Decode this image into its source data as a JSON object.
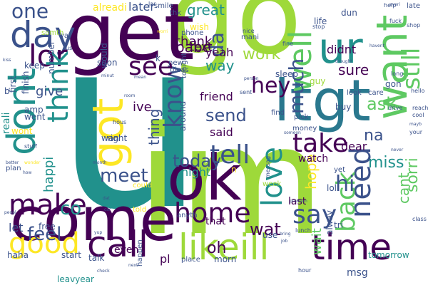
{
  "palette": {
    "purple": "#440154",
    "indigo": "#3b528b",
    "teal": "#21918c",
    "green": "#5ec962",
    "lime": "#9ed93a",
    "yellow": "#fde725",
    "white": "#ffffff"
  },
  "words": [
    {
      "text": "u",
      "color": "#21918c",
      "orientation": "horizontal"
    },
    {
      "text": "im",
      "color": "#9ed93a",
      "orientation": "horizontal"
    },
    {
      "text": "go",
      "color": "#9ed93a",
      "orientation": "horizontal"
    },
    {
      "text": "get",
      "color": "#440154",
      "orientation": "horizontal"
    },
    {
      "text": "come",
      "color": "#440154",
      "orientation": "horizontal"
    },
    {
      "text": "ok",
      "color": "#440154",
      "orientation": "horizontal"
    },
    {
      "text": "ur",
      "color": "#21918c",
      "orientation": "horizontal"
    },
    {
      "text": "ltgt",
      "color": "#2a788e",
      "orientation": "horizontal"
    },
    {
      "text": "want",
      "color": "#5ec962",
      "orientation": "vertical"
    },
    {
      "text": "got",
      "color": "#fde725",
      "orientation": "vertical"
    },
    {
      "text": "know",
      "color": "#3b528b",
      "orientation": "vertical"
    },
    {
      "text": "call",
      "color": "#440154",
      "orientation": "horizontal"
    },
    {
      "text": "likeill",
      "color": "#9ed93a",
      "orientation": "horizontal"
    },
    {
      "text": "time",
      "color": "#440154",
      "orientation": "horizontal"
    },
    {
      "text": "day",
      "color": "#3b528b",
      "orientation": "horizontal"
    },
    {
      "text": "one",
      "color": "#3b528b",
      "orientation": "horizontal"
    },
    {
      "text": "dont",
      "color": "#21918c",
      "orientation": "vertical"
    },
    {
      "text": "lor",
      "color": "#440154",
      "orientation": "horizontal"
    },
    {
      "text": "think",
      "color": "#21918c",
      "orientation": "vertical"
    },
    {
      "text": "love",
      "color": "#21918c",
      "orientation": "vertical"
    },
    {
      "text": "tell",
      "color": "#3b528b",
      "orientation": "horizontal"
    },
    {
      "text": "take",
      "color": "#440154",
      "orientation": "horizontal"
    },
    {
      "text": "well",
      "color": "#5ec962",
      "orientation": "vertical"
    },
    {
      "text": "still",
      "color": "#5ec962",
      "orientation": "vertical"
    },
    {
      "text": "make",
      "color": "#440154",
      "orientation": "horizontal"
    },
    {
      "text": "good",
      "color": "#fde725",
      "orientation": "horizontal"
    },
    {
      "text": "home",
      "color": "#440154",
      "orientation": "horizontal"
    },
    {
      "text": "need",
      "color": "#3b528b",
      "orientation": "vertical"
    },
    {
      "text": "back",
      "color": "#5ec962",
      "orientation": "vertical"
    },
    {
      "text": "say",
      "color": "#3b528b",
      "orientation": "horizontal"
    },
    {
      "text": "see",
      "color": "#440154",
      "orientation": "horizontal"
    },
    {
      "text": "work",
      "color": "#9ed93a",
      "orientation": "horizontal"
    },
    {
      "text": "meet",
      "color": "#3b528b",
      "orientation": "horizontal"
    },
    {
      "text": "hey",
      "color": "#440154",
      "orientation": "horizontal"
    },
    {
      "text": "send",
      "color": "#3b528b",
      "orientation": "horizontal"
    },
    {
      "text": "today",
      "color": "#3b528b",
      "orientation": "horizontal"
    },
    {
      "text": "hi",
      "color": "#3b528b",
      "orientation": "horizontal"
    },
    {
      "text": "much",
      "color": "#3b528b",
      "orientation": "vertical"
    },
    {
      "text": "da",
      "color": "#3b528b",
      "orientation": "vertical"
    },
    {
      "text": "sure",
      "color": "#440154",
      "orientation": "horizontal"
    },
    {
      "text": "ask",
      "color": "#5ec962",
      "orientation": "horizontal"
    },
    {
      "text": "miss",
      "color": "#21918c",
      "orientation": "horizontal"
    },
    {
      "text": "co",
      "color": "#21918c",
      "orientation": "horizontal"
    },
    {
      "text": "feel",
      "color": "#3b528b",
      "orientation": "horizontal"
    },
    {
      "text": "wat",
      "color": "#440154",
      "orientation": "horizontal"
    },
    {
      "text": "oh",
      "color": "#440154",
      "orientation": "horizontal"
    },
    {
      "text": "way",
      "color": "#21918c",
      "orientation": "horizontal"
    },
    {
      "text": "babe",
      "color": "#440154",
      "orientation": "horizontal"
    },
    {
      "text": "thank",
      "color": "#440154",
      "orientation": "horizontal"
    },
    {
      "text": "great",
      "color": "#21918c",
      "orientation": "horizontal"
    },
    {
      "text": "text",
      "color": "#440154",
      "orientation": "horizontal"
    },
    {
      "text": "yeah",
      "color": "#440154",
      "orientation": "horizontal"
    },
    {
      "text": "later",
      "color": "#3b528b",
      "orientation": "horizontal"
    },
    {
      "text": "alreadi",
      "color": "#fde725",
      "orientation": "horizontal"
    },
    {
      "text": "happi",
      "color": "#21918c",
      "orientation": "vertical"
    },
    {
      "text": "give",
      "color": "#3b528b",
      "orientation": "horizontal"
    },
    {
      "text": "thing",
      "color": "#3b528b",
      "orientation": "vertical"
    },
    {
      "text": "ive",
      "color": "#440154",
      "orientation": "horizontal"
    },
    {
      "text": "night",
      "color": "#21918c",
      "orientation": "horizontal"
    },
    {
      "text": "friend",
      "color": "#440154",
      "orientation": "horizontal"
    },
    {
      "text": "said",
      "color": "#440154",
      "orientation": "horizontal"
    },
    {
      "text": "hope",
      "color": "#fde725",
      "orientation": "vertical"
    },
    {
      "text": "sorri",
      "color": "#5ec962",
      "orientation": "vertical"
    },
    {
      "text": "cant",
      "color": "#5ec962",
      "orientation": "vertical"
    },
    {
      "text": "na",
      "color": "#3b528b",
      "orientation": "horizontal"
    },
    {
      "text": "didnt",
      "color": "#440154",
      "orientation": "horizontal"
    },
    {
      "text": "dear",
      "color": "#440154",
      "orientation": "horizontal"
    },
    {
      "text": "wait",
      "color": "#5ec962",
      "orientation": "vertical"
    },
    {
      "text": "let",
      "color": "#3b528b",
      "orientation": "horizontal"
    },
    {
      "text": "pl",
      "color": "#440154",
      "orientation": "horizontal"
    },
    {
      "text": "even",
      "color": "#440154",
      "orientation": "horizontal"
    },
    {
      "text": "that",
      "color": "#440154",
      "orientation": "horizontal"
    },
    {
      "text": "last",
      "color": "#440154",
      "orientation": "horizontal"
    },
    {
      "text": "lol",
      "color": "#3b528b",
      "orientation": "horizontal"
    },
    {
      "text": "msg",
      "color": "#3b528b",
      "orientation": "horizontal"
    },
    {
      "text": "free",
      "color": "#3b528b",
      "orientation": "horizontal"
    },
    {
      "text": "haha",
      "color": "#3b528b",
      "orientation": "horizontal"
    },
    {
      "text": "leavyear",
      "color": "#21918c",
      "orientation": "horizontal"
    },
    {
      "text": "start",
      "color": "#3b528b",
      "orientation": "horizontal"
    },
    {
      "text": "talk",
      "color": "#3b528b",
      "orientation": "horizontal"
    },
    {
      "text": "watch",
      "color": "#440154",
      "orientation": "horizontal"
    },
    {
      "text": "tomorrow",
      "color": "#21918c",
      "orientation": "horizontal"
    },
    {
      "text": "use",
      "color": "#3b528b",
      "orientation": "horizontal"
    },
    {
      "text": "morn",
      "color": "#3b528b",
      "orientation": "horizontal"
    },
    {
      "text": "amp",
      "color": "#3b528b",
      "orientation": "horizontal"
    },
    {
      "text": "went",
      "color": "#3b528b",
      "orientation": "horizontal"
    },
    {
      "text": "reali",
      "color": "#21918c",
      "orientation": "vertical"
    },
    {
      "text": "wont",
      "color": "#fde725",
      "orientation": "horizontal"
    },
    {
      "text": "finish",
      "color": "#3b528b",
      "orientation": "vertical"
    },
    {
      "text": "first",
      "color": "#3b528b",
      "orientation": "vertical"
    },
    {
      "text": "keep",
      "color": "#3b528b",
      "orientation": "horizontal"
    },
    {
      "text": "smile",
      "color": "#3b528b",
      "orientation": "horizontal"
    },
    {
      "text": "wish",
      "color": "#fde725",
      "orientation": "horizontal"
    },
    {
      "text": "soon",
      "color": "#3b528b",
      "orientation": "horizontal"
    },
    {
      "text": "phone",
      "color": "#3b528b",
      "orientation": "horizontal"
    },
    {
      "text": "mani",
      "color": "#3b528b",
      "orientation": "horizontal"
    },
    {
      "text": "life",
      "color": "#3b528b",
      "orientation": "horizontal"
    },
    {
      "text": "dun",
      "color": "#3b528b",
      "orientation": "horizontal"
    },
    {
      "text": "sleep",
      "color": "#3b528b",
      "orientation": "horizontal"
    },
    {
      "text": "guy",
      "color": "#9ed93a",
      "orientation": "horizontal"
    },
    {
      "text": "gon",
      "color": "#3b528b",
      "orientation": "horizontal"
    },
    {
      "text": "buy",
      "color": "#3b528b",
      "orientation": "horizontal"
    },
    {
      "text": "look",
      "color": "#3b528b",
      "orientation": "horizontal"
    },
    {
      "text": "care",
      "color": "#3b528b",
      "orientation": "horizontal"
    },
    {
      "text": "find",
      "color": "#3b528b",
      "orientation": "horizontal"
    },
    {
      "text": "money",
      "color": "#3b528b",
      "orientation": "horizontal"
    },
    {
      "text": "yet",
      "color": "#3b528b",
      "orientation": "horizontal"
    },
    {
      "text": "week",
      "color": "#9ed93a",
      "orientation": "horizontal"
    },
    {
      "text": "told",
      "color": "#fde725",
      "orientation": "horizontal"
    },
    {
      "text": "place",
      "color": "#3b528b",
      "orientation": "horizontal"
    },
    {
      "text": "alway",
      "color": "#3b528b",
      "orientation": "vertical"
    },
    {
      "text": "tri",
      "color": "#3b528b",
      "orientation": "horizontal"
    },
    {
      "text": "could",
      "color": "#fde725",
      "orientation": "horizontal"
    },
    {
      "text": "anyth",
      "color": "#3b528b",
      "orientation": "horizontal"
    },
    {
      "text": "new",
      "color": "#3b528b",
      "orientation": "horizontal"
    },
    {
      "text": "pleas",
      "color": "#3b528b",
      "orientation": "horizontal"
    },
    {
      "text": "thk",
      "color": "#3b528b",
      "orientation": "horizontal"
    },
    {
      "text": "wan",
      "color": "#3b528b",
      "orientation": "horizontal"
    },
    {
      "text": "right",
      "color": "#3b528b",
      "orientation": "horizontal"
    },
    {
      "text": "around",
      "color": "#3b528b",
      "orientation": "vertical"
    },
    {
      "text": "tonight",
      "color": "#3b528b",
      "orientation": "vertical"
    },
    {
      "text": "n",
      "color": "#fde725",
      "orientation": "horizontal"
    },
    {
      "text": "k",
      "color": "#3b528b",
      "orientation": "horizontal"
    },
    {
      "text": "would",
      "color": "#3b528b",
      "orientation": "vertical"
    },
    {
      "text": "number",
      "color": "#3b528b",
      "orientation": "vertical"
    },
    {
      "text": "happen",
      "color": "#3b528b",
      "orientation": "vertical"
    },
    {
      "text": "somth",
      "color": "#9ed93a",
      "orientation": "horizontal"
    },
    {
      "text": "ya",
      "color": "#3b528b",
      "orientation": "horizontal"
    },
    {
      "text": "b",
      "color": "#3b528b",
      "orientation": "horizontal"
    },
    {
      "text": "plan",
      "color": "#3b528b",
      "orientation": "horizontal"
    },
    {
      "text": "lunch",
      "color": "#3b528b",
      "orientation": "horizontal"
    },
    {
      "text": "hour",
      "color": "#3b528b",
      "orientation": "horizontal"
    },
    {
      "text": "late",
      "color": "#3b528b",
      "orientation": "horizontal"
    },
    {
      "text": "help",
      "color": "#3b528b",
      "orientation": "horizontal"
    },
    {
      "text": "nice",
      "color": "#3b528b",
      "orientation": "horizontal"
    },
    {
      "text": "fine",
      "color": "#3b528b",
      "orientation": "horizontal"
    },
    {
      "text": "stop",
      "color": "#3b528b",
      "orientation": "horizontal"
    },
    {
      "text": "long",
      "color": "#3b528b",
      "orientation": "horizontal"
    },
    {
      "text": "hello",
      "color": "#3b528b",
      "orientation": "horizontal"
    },
    {
      "text": "cool",
      "color": "#3b528b",
      "orientation": "horizontal"
    },
    {
      "text": "drive",
      "color": "#3b528b",
      "orientation": "horizontal"
    },
    {
      "text": "reach",
      "color": "#3b528b",
      "orientation": "horizontal"
    },
    {
      "text": "your",
      "color": "#3b528b",
      "orientation": "horizontal"
    },
    {
      "text": "mayb",
      "color": "#3b528b",
      "orientation": "horizontal"
    },
    {
      "text": "class",
      "color": "#3b528b",
      "orientation": "horizontal"
    },
    {
      "text": "shop",
      "color": "#3b528b",
      "orientation": "horizontal"
    },
    {
      "text": "everi",
      "color": "#3b528b",
      "orientation": "horizontal"
    },
    {
      "text": "fuck",
      "color": "#3b528b",
      "orientation": "horizontal"
    },
    {
      "text": "thought",
      "color": "#3b528b",
      "orientation": "horizontal"
    },
    {
      "text": "someon",
      "color": "#3b528b",
      "orientation": "horizontal"
    },
    {
      "text": "never",
      "color": "#3b528b",
      "orientation": "horizontal"
    },
    {
      "text": "better",
      "color": "#3b528b",
      "orientation": "horizontal"
    },
    {
      "text": "wonder",
      "color": "#fde725",
      "orientation": "horizontal"
    },
    {
      "text": "stuff",
      "color": "#3b528b",
      "orientation": "horizontal"
    },
    {
      "text": "month",
      "color": "#3b528b",
      "orientation": "horizontal"
    },
    {
      "text": "hous",
      "color": "#3b528b",
      "orientation": "horizontal"
    },
    {
      "text": "room",
      "color": "#3b528b",
      "orientation": "horizontal"
    },
    {
      "text": "mean",
      "color": "#3b528b",
      "orientation": "horizontal"
    },
    {
      "text": "minut",
      "color": "#3b528b",
      "orientation": "horizontal"
    },
    {
      "text": "person",
      "color": "#3b528b",
      "orientation": "horizontal"
    },
    {
      "text": "problem",
      "color": "#3b528b",
      "orientation": "horizontal"
    },
    {
      "text": "messag",
      "color": "#3b528b",
      "orientation": "vertical"
    },
    {
      "text": "pick",
      "color": "#3b528b",
      "orientation": "horizontal"
    },
    {
      "text": "bring",
      "color": "#3b528b",
      "orientation": "horizontal"
    },
    {
      "text": "job",
      "color": "#3b528b",
      "orientation": "horizontal"
    },
    {
      "text": "car",
      "color": "#3b528b",
      "orientation": "horizontal"
    },
    {
      "text": "dat",
      "color": "#3b528b",
      "orientation": "horizontal"
    },
    {
      "text": "yup",
      "color": "#3b528b",
      "orientation": "horizontal"
    },
    {
      "text": "check",
      "color": "#3b528b",
      "orientation": "horizontal"
    },
    {
      "text": "next",
      "color": "#3b528b",
      "orientation": "horizontal"
    },
    {
      "text": "peopl",
      "color": "#3b528b",
      "orientation": "horizontal"
    },
    {
      "text": "sent",
      "color": "#3b528b",
      "orientation": "horizontal"
    },
    {
      "text": "havent",
      "color": "#3b528b",
      "orientation": "horizontal"
    },
    {
      "text": "worri",
      "color": "#fde725",
      "orientation": "horizontal"
    },
    {
      "text": "lar",
      "color": "#3b528b",
      "orientation": "horizontal"
    },
    {
      "text": "us",
      "color": "#3b528b",
      "orientation": "horizontal"
    },
    {
      "text": "kiss",
      "color": "#3b528b",
      "orientation": "horizontal"
    },
    {
      "text": "how",
      "color": "#3b528b",
      "orientation": "horizontal"
    }
  ]
}
